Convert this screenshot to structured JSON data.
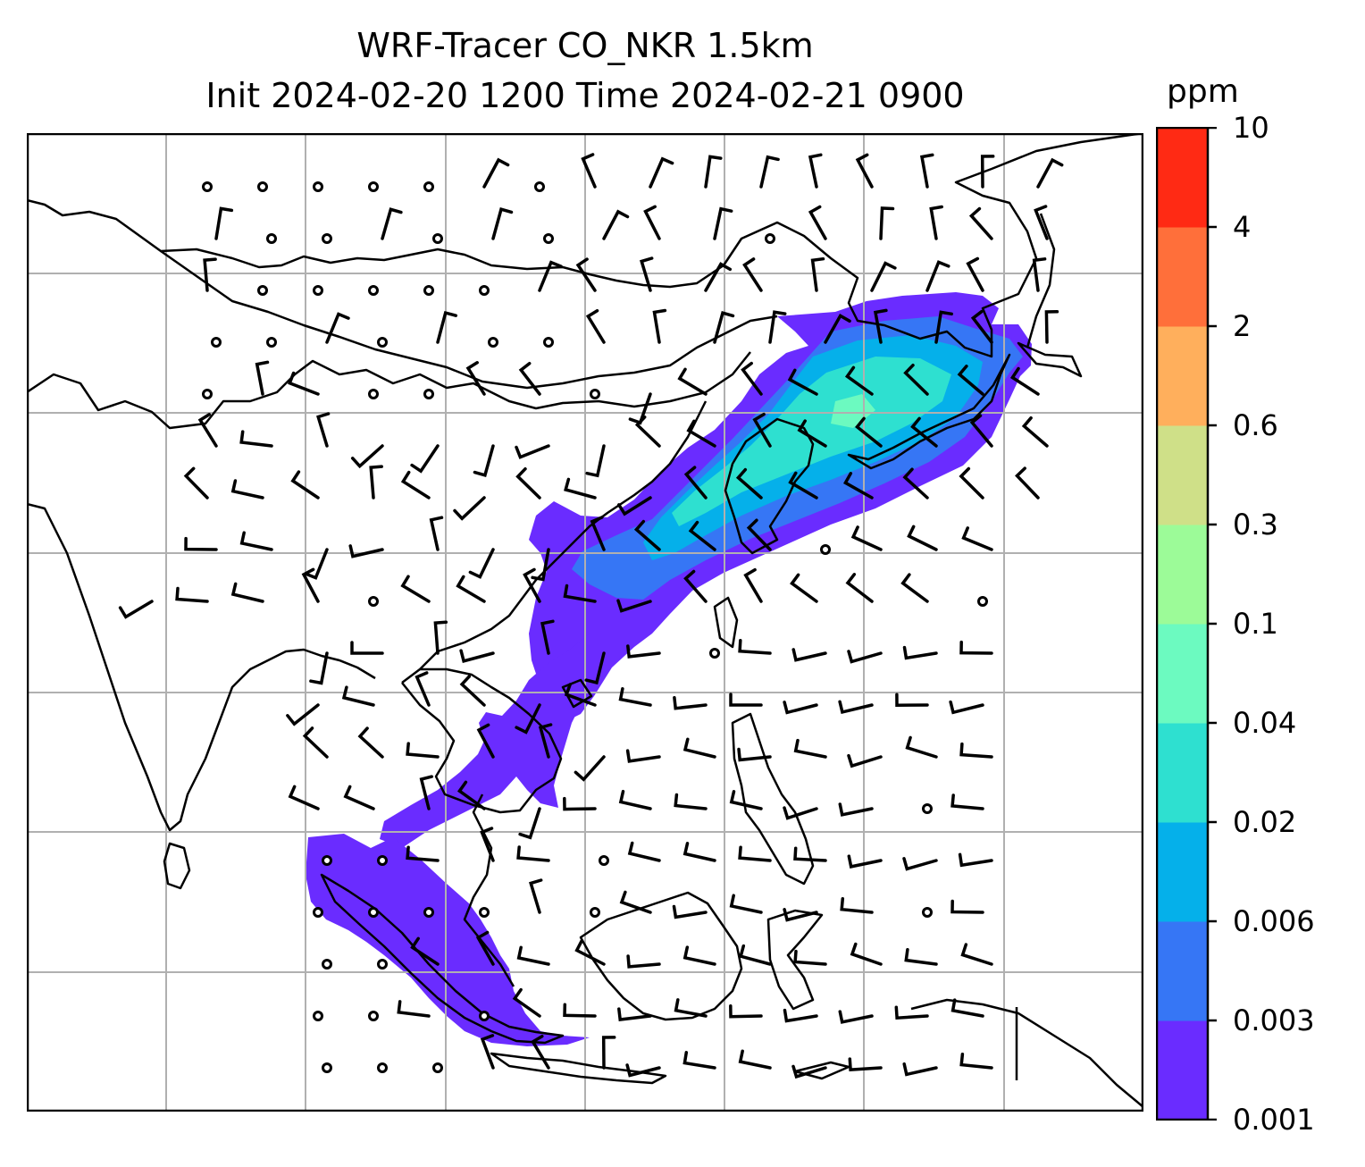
{
  "title": {
    "line1": "WRF-Tracer CO_NKR 1.5km",
    "line2": "Init 2024-02-20 1200 Time 2024-02-21 0900"
  },
  "colorbar": {
    "unit": "ppm",
    "levels": [
      "0.001",
      "0.003",
      "0.006",
      "0.02",
      "0.04",
      "0.1",
      "0.3",
      "0.6",
      "2",
      "4",
      "10"
    ],
    "colors": [
      "#6a2cff",
      "#3676f5",
      "#05b0ea",
      "#2ee0d0",
      "#6cfac0",
      "#9cfb98",
      "#cfe088",
      "#ffaf5c",
      "#ff6f3a",
      "#ff2a14"
    ]
  },
  "map": {
    "background": "#ffffff",
    "gridline_color": "#b0b0b0",
    "coastline_color": "#000000",
    "wind_symbol": "wind-barb",
    "calm_symbol": "calm-circle"
  }
}
